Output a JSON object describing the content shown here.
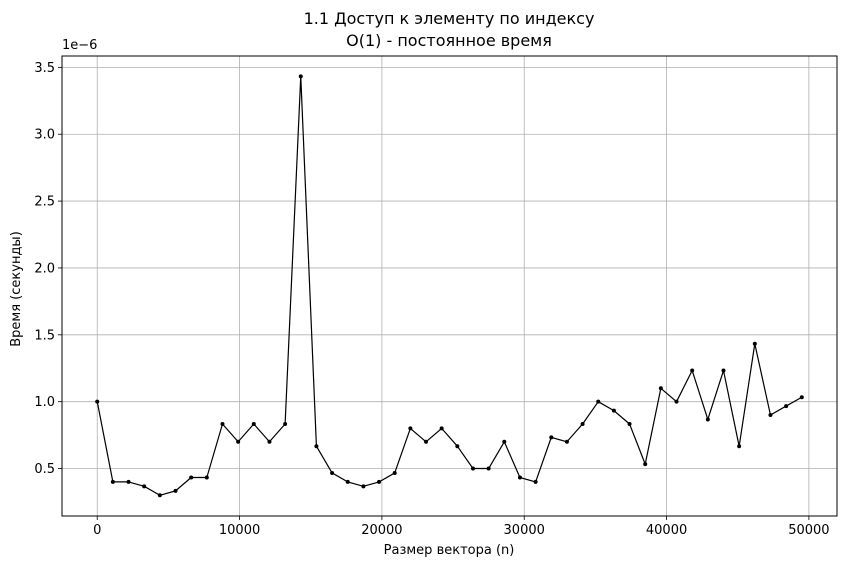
{
  "chart_data": {
    "type": "line",
    "title": "1.1 Доступ к элементу по индексу",
    "subtitle": "O(1) - постоянное время",
    "xlabel": "Размер вектора (n)",
    "ylabel": "Время (секунды)",
    "y_offset_label": "1e−6",
    "xlim": [
      -2475,
      51975
    ],
    "ylim": [
      1.45e-07,
      3.585e-06
    ],
    "x_ticks": [
      0,
      10000,
      20000,
      30000,
      40000,
      50000
    ],
    "x_tick_labels": [
      "0",
      "10000",
      "20000",
      "30000",
      "40000",
      "50000"
    ],
    "y_ticks": [
      5e-07,
      1e-06,
      1.5e-06,
      2e-06,
      2.5e-06,
      3e-06,
      3.5e-06
    ],
    "y_tick_labels": [
      "0.5",
      "1.0",
      "1.5",
      "2.0",
      "2.5",
      "3.0",
      "3.5"
    ],
    "grid": true,
    "series": [
      {
        "color": "#000000",
        "x": [
          0,
          1100,
          2200,
          3300,
          4400,
          5500,
          6600,
          7700,
          8800,
          9900,
          11000,
          12100,
          13200,
          14300,
          15400,
          16500,
          17600,
          18700,
          19800,
          20900,
          22000,
          23100,
          24200,
          25300,
          26400,
          27500,
          28600,
          29700,
          30800,
          31900,
          33000,
          34100,
          35200,
          36300,
          37400,
          38500,
          39600,
          40700,
          41800,
          42900,
          44000,
          45100,
          46200,
          47300,
          48400,
          49500
        ],
        "values": [
          1e-06,
          4e-07,
          4e-07,
          3.67e-07,
          3e-07,
          3.33e-07,
          4.33e-07,
          4.33e-07,
          8.33e-07,
          7e-07,
          8.33e-07,
          7e-07,
          8.33e-07,
          3.433e-06,
          6.67e-07,
          4.67e-07,
          4e-07,
          3.67e-07,
          4e-07,
          4.67e-07,
          8e-07,
          7e-07,
          8e-07,
          6.67e-07,
          5e-07,
          5e-07,
          7e-07,
          4.33e-07,
          4e-07,
          7.33e-07,
          7e-07,
          8.33e-07,
          1e-06,
          9.33e-07,
          8.33e-07,
          5.33e-07,
          1.1e-06,
          1e-06,
          1.233e-06,
          8.67e-07,
          1.233e-06,
          6.67e-07,
          1.433e-06,
          9e-07,
          9.67e-07,
          1.033e-06
        ]
      }
    ]
  }
}
